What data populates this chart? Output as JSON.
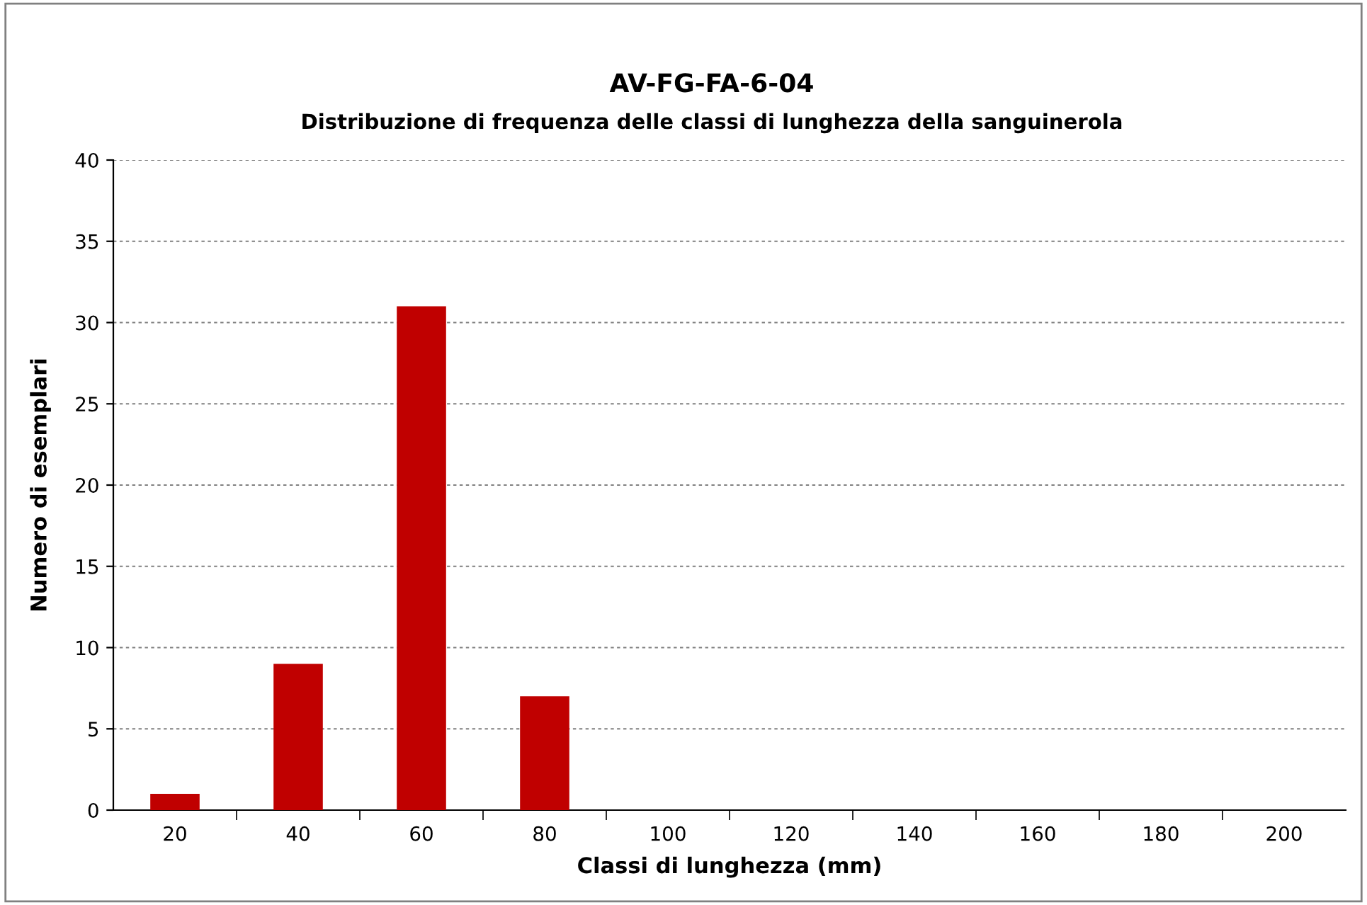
{
  "chart_data": {
    "type": "bar",
    "title": "AV-FG-FA-6-04",
    "subtitle": "Distribuzione di frequenza delle classi di lunghezza della sanguinerola",
    "xlabel": "Classi di lunghezza (mm)",
    "ylabel": "Numero di esemplari",
    "categories": [
      "20",
      "40",
      "60",
      "80",
      "100",
      "120",
      "140",
      "160",
      "180",
      "200"
    ],
    "values": [
      1,
      9,
      31,
      7,
      0,
      0,
      0,
      0,
      0,
      0
    ],
    "color": "#c00000",
    "ylim": [
      0,
      40
    ],
    "yticks": [
      0,
      5,
      10,
      15,
      20,
      25,
      30,
      35,
      40
    ],
    "grid": "y",
    "legend": false
  }
}
